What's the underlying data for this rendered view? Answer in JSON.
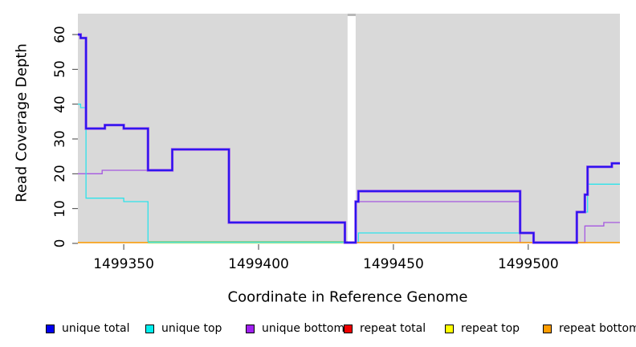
{
  "chart_data": {
    "type": "line",
    "step": true,
    "title": "",
    "xlabel": "Coordinate in Reference Genome",
    "ylabel": "Read Coverage Depth",
    "x_range": [
      1499333,
      1499534
    ],
    "y_range": [
      0,
      66
    ],
    "x_ticks": [
      1499350,
      1499400,
      1499450,
      1499500
    ],
    "y_ticks": [
      0,
      10,
      20,
      30,
      40,
      50,
      60
    ],
    "plot_bg": "#d9d9d9",
    "gap_region": [
      1499433,
      1499436
    ],
    "grid": false,
    "legend_position": "bottom",
    "series": [
      {
        "name": "unique total",
        "color": "#2012ee",
        "segments": [
          [
            1499333,
            1499334,
            60
          ],
          [
            1499334,
            1499336,
            59
          ],
          [
            1499336,
            1499343,
            33
          ],
          [
            1499343,
            1499350,
            34
          ],
          [
            1499350,
            1499359,
            33
          ],
          [
            1499359,
            1499368,
            21
          ],
          [
            1499368,
            1499389,
            27
          ],
          [
            1499389,
            1499432,
            6
          ],
          [
            1499432,
            1499436,
            0
          ],
          [
            1499436,
            1499437,
            12
          ],
          [
            1499437,
            1499497,
            15
          ],
          [
            1499497,
            1499502,
            3
          ],
          [
            1499502,
            1499518,
            0
          ],
          [
            1499518,
            1499521,
            9
          ],
          [
            1499521,
            1499522,
            14
          ],
          [
            1499522,
            1499531,
            22
          ],
          [
            1499531,
            1499534,
            23
          ]
        ]
      },
      {
        "name": "unique top",
        "color": "#2ee3ea",
        "segments": [
          [
            1499333,
            1499334,
            40
          ],
          [
            1499334,
            1499336,
            39
          ],
          [
            1499336,
            1499350,
            13
          ],
          [
            1499350,
            1499359,
            12
          ],
          [
            1499359,
            1499437,
            0
          ],
          [
            1499437,
            1499502,
            3
          ],
          [
            1499502,
            1499518,
            0
          ],
          [
            1499518,
            1499522,
            9
          ],
          [
            1499522,
            1499534,
            17
          ]
        ]
      },
      {
        "name": "unique bottom",
        "color": "#a558e0",
        "segments": [
          [
            1499333,
            1499342,
            20
          ],
          [
            1499342,
            1499368,
            21
          ],
          [
            1499368,
            1499389,
            27
          ],
          [
            1499389,
            1499432,
            6
          ],
          [
            1499432,
            1499436,
            0
          ],
          [
            1499436,
            1499497,
            12
          ],
          [
            1499497,
            1499521,
            0
          ],
          [
            1499521,
            1499528,
            5
          ],
          [
            1499528,
            1499534,
            6
          ]
        ]
      },
      {
        "name": "repeat total",
        "color": "#ee0000",
        "segments": [
          [
            1499333,
            1499534,
            0
          ]
        ]
      },
      {
        "name": "repeat top",
        "color": "#f5e642",
        "segments": [
          [
            1499333,
            1499534,
            0
          ]
        ]
      },
      {
        "name": "repeat bottom",
        "color": "#ff9d00",
        "segments": [
          [
            1499333,
            1499534,
            0
          ]
        ]
      }
    ],
    "zero_line_visuals": {
      "orange_regions": [
        [
          1499333,
          1499359
        ],
        [
          1499436,
          1499534
        ]
      ],
      "yellow_regions": [
        [
          1499359,
          1499433
        ]
      ],
      "green_regions": [
        [
          1499359,
          1499433
        ]
      ],
      "green_color": "#8ed08a",
      "orange_color": "#ff9d00",
      "yellow_color": "#f5e642"
    }
  },
  "legend": {
    "items": [
      {
        "label": "unique total",
        "color": "#0000ee"
      },
      {
        "label": "unique top",
        "color": "#00eeee"
      },
      {
        "label": "unique bottom",
        "color": "#a020f0"
      },
      {
        "label": "repeat total",
        "color": "#ee0000"
      },
      {
        "label": "repeat top",
        "color": "#ffff00"
      },
      {
        "label": "repeat bottom",
        "color": "#ff9d00"
      }
    ]
  },
  "colors": {
    "plot_bg": "#d9d9d9",
    "gap_band": "#ffffff",
    "gap_cap": "#b8b8b8",
    "tick": "#404040",
    "blue_halo": "#9240ef"
  }
}
